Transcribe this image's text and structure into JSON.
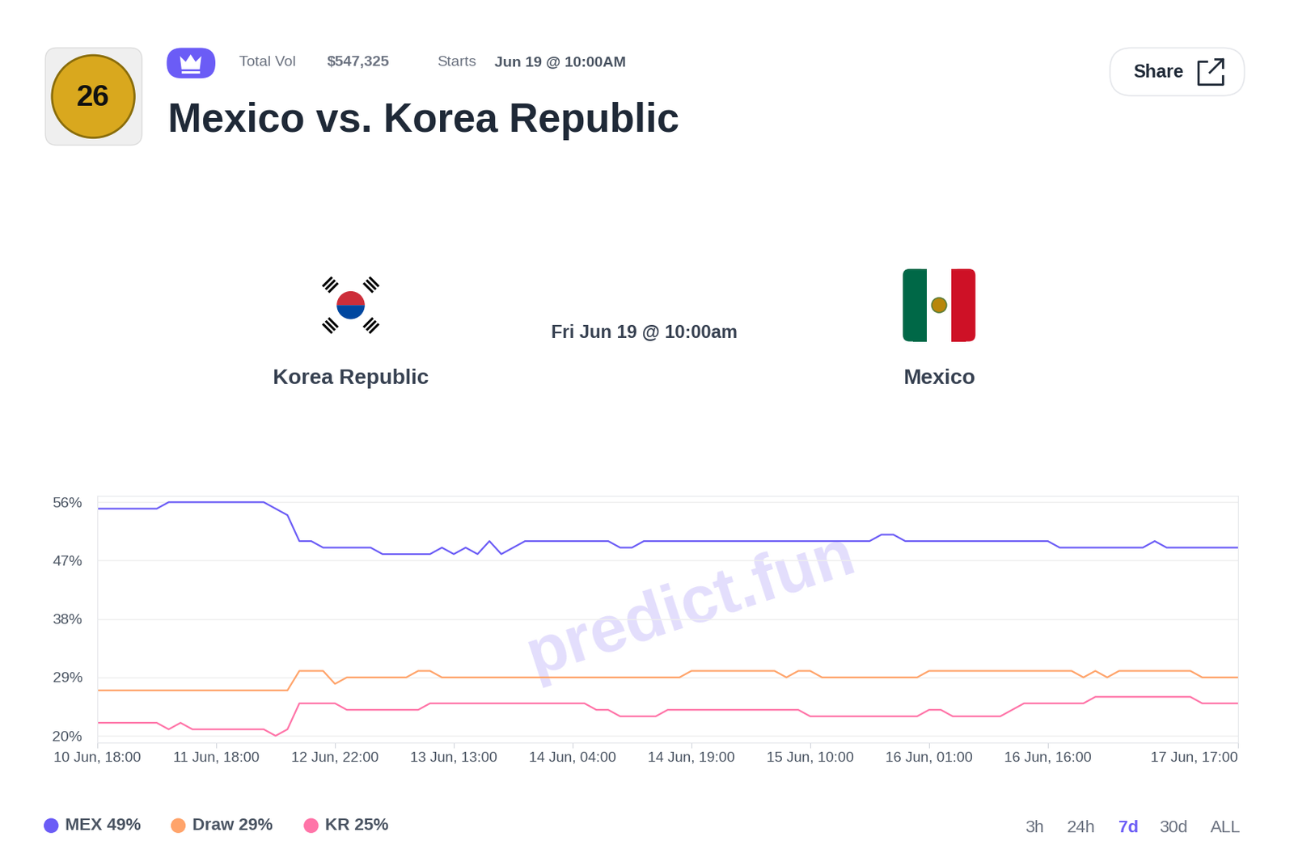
{
  "header": {
    "badge_text": "26",
    "total_vol_label": "Total Vol",
    "total_vol": "$547,325",
    "starts_label": "Starts",
    "starts": "Jun 19 @ 10:00AM",
    "title": "Mexico vs. Korea Republic",
    "share": "Share"
  },
  "match": {
    "home": "Korea Republic",
    "time": "Fri Jun 19 @ 10:00am",
    "away": "Mexico"
  },
  "watermark": "predict.fun",
  "ranges": [
    "3h",
    "24h",
    "7d",
    "30d",
    "ALL"
  ],
  "selected_range": "7d",
  "chart_data": {
    "type": "line",
    "categories": [
      "10 Jun, 18:00",
      null,
      null,
      null,
      null,
      null,
      null,
      null,
      null,
      null,
      "11 Jun, 18:00",
      null,
      null,
      null,
      null,
      null,
      null,
      null,
      null,
      null,
      "12 Jun, 22:00",
      null,
      null,
      null,
      null,
      null,
      null,
      null,
      null,
      null,
      "13 Jun, 13:00",
      null,
      null,
      null,
      null,
      null,
      null,
      null,
      null,
      null,
      "14 Jun, 04:00",
      null,
      null,
      null,
      null,
      null,
      null,
      null,
      null,
      null,
      "14 Jun, 19:00",
      null,
      null,
      null,
      null,
      null,
      null,
      null,
      null,
      null,
      "15 Jun, 10:00",
      null,
      null,
      null,
      null,
      null,
      null,
      null,
      null,
      null,
      "16 Jun, 01:00",
      null,
      null,
      null,
      null,
      null,
      null,
      null,
      null,
      null,
      "16 Jun, 16:00",
      null,
      null,
      null,
      null,
      null,
      null,
      null,
      null,
      null,
      null,
      null,
      null,
      null,
      null,
      null,
      "17 Jun, 17:00"
    ],
    "series": [
      {
        "name": "MEX 49%",
        "color": "#6b5cf6",
        "values": [
          55,
          55,
          55,
          55,
          55,
          55,
          56,
          56,
          56,
          56,
          56,
          56,
          56,
          56,
          56,
          55,
          54,
          50,
          50,
          49,
          49,
          49,
          49,
          49,
          48,
          48,
          48,
          48,
          48,
          49,
          48,
          49,
          48,
          50,
          48,
          49,
          50,
          50,
          50,
          50,
          50,
          50,
          50,
          50,
          49,
          49,
          50,
          50,
          50,
          50,
          50,
          50,
          50,
          50,
          50,
          50,
          50,
          50,
          50,
          50,
          50,
          50,
          50,
          50,
          50,
          50,
          51,
          51,
          50,
          50,
          50,
          50,
          50,
          50,
          50,
          50,
          50,
          50,
          50,
          50,
          50,
          49,
          49,
          49,
          49,
          49,
          49,
          49,
          49,
          50,
          49,
          49,
          49,
          49,
          49,
          49,
          49
        ]
      },
      {
        "name": "Draw 29%",
        "color": "#ffa46b",
        "values": [
          27,
          27,
          27,
          27,
          27,
          27,
          27,
          27,
          27,
          27,
          27,
          27,
          27,
          27,
          27,
          27,
          27,
          30,
          30,
          30,
          28,
          29,
          29,
          29,
          29,
          29,
          29,
          30,
          30,
          29,
          29,
          29,
          29,
          29,
          29,
          29,
          29,
          29,
          29,
          29,
          29,
          29,
          29,
          29,
          29,
          29,
          29,
          29,
          29,
          29,
          30,
          30,
          30,
          30,
          30,
          30,
          30,
          30,
          29,
          30,
          30,
          29,
          29,
          29,
          29,
          29,
          29,
          29,
          29,
          29,
          30,
          30,
          30,
          30,
          30,
          30,
          30,
          30,
          30,
          30,
          30,
          30,
          30,
          29,
          30,
          29,
          30,
          30,
          30,
          30,
          30,
          30,
          30,
          29,
          29,
          29,
          29
        ]
      },
      {
        "name": "KR 25%",
        "color": "#ff74a8",
        "values": [
          22,
          22,
          22,
          22,
          22,
          22,
          21,
          22,
          21,
          21,
          21,
          21,
          21,
          21,
          21,
          20,
          21,
          25,
          25,
          25,
          25,
          24,
          24,
          24,
          24,
          24,
          24,
          24,
          25,
          25,
          25,
          25,
          25,
          25,
          25,
          25,
          25,
          25,
          25,
          25,
          25,
          25,
          24,
          24,
          23,
          23,
          23,
          23,
          24,
          24,
          24,
          24,
          24,
          24,
          24,
          24,
          24,
          24,
          24,
          24,
          23,
          23,
          23,
          23,
          23,
          23,
          23,
          23,
          23,
          23,
          24,
          24,
          23,
          23,
          23,
          23,
          23,
          24,
          25,
          25,
          25,
          25,
          25,
          25,
          26,
          26,
          26,
          26,
          26,
          26,
          26,
          26,
          26,
          25,
          25,
          25,
          25
        ]
      }
    ],
    "ylim": [
      19,
      57
    ],
    "yticks": [
      {
        "value": 20,
        "label": "20%"
      },
      {
        "value": 29,
        "label": "29%"
      },
      {
        "value": 38,
        "label": "38%"
      },
      {
        "value": 47,
        "label": "47%"
      },
      {
        "value": 56,
        "label": "56%"
      }
    ],
    "grid": true
  }
}
